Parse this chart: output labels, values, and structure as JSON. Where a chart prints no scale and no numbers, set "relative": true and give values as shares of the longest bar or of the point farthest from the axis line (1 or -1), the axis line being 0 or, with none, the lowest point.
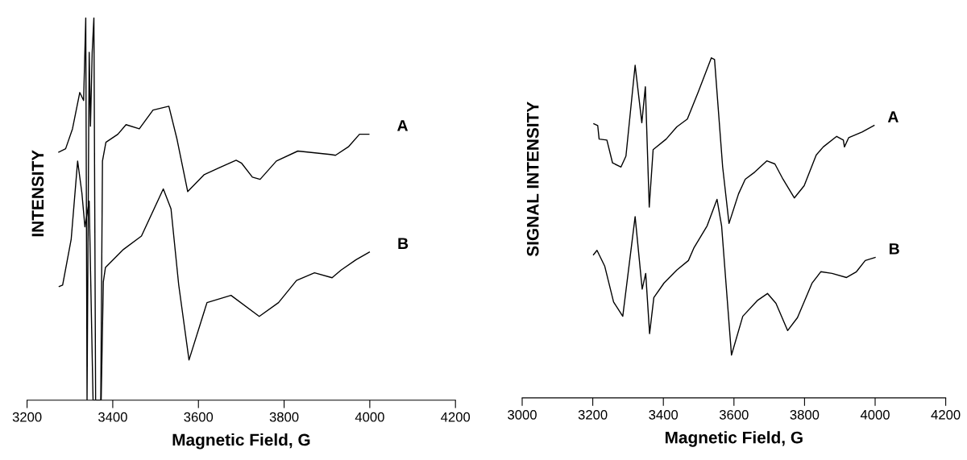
{
  "chart_data": [
    {
      "type": "line",
      "relative": true,
      "xlabel": "Magnetic Field, G",
      "ylabel": "INTENSITY",
      "xlim": [
        3200,
        4200
      ],
      "xticks": [
        3200,
        3400,
        3600,
        3800,
        4000,
        4200
      ],
      "grid": false,
      "legend": false,
      "tick_labels": "x",
      "marker": "none",
      "line_style": "solid",
      "series": [
        {
          "name": "A",
          "color": "#000000",
          "x": [
            3274,
            3290,
            3306,
            3323,
            3332,
            3337,
            3340,
            3345,
            3348,
            3352,
            3356,
            3360,
            3372,
            3376,
            3384,
            3412,
            3431,
            3462,
            3494,
            3531,
            3550,
            3575,
            3613,
            3650,
            3688,
            3701,
            3726,
            3744,
            3782,
            3832,
            3908,
            3920,
            3951,
            3976,
            3998
          ],
          "values": [
            0.648,
            0.657,
            0.709,
            0.804,
            0.783,
            1.0,
            0,
            0.909,
            0.716,
            0.909,
            1.0,
            0,
            0,
            0.625,
            0.674,
            0.695,
            0.72,
            0.709,
            0.758,
            0.768,
            0.682,
            0.545,
            0.589,
            0.608,
            0.627,
            0.619,
            0.583,
            0.577,
            0.625,
            0.651,
            0.642,
            0.64,
            0.663,
            0.695,
            0.695
          ]
        },
        {
          "name": "B",
          "color": "#000000",
          "x": [
            3275,
            3283,
            3303,
            3318,
            3328,
            3335,
            3345,
            3354,
            3373,
            3378,
            3383,
            3425,
            3467,
            3518,
            3536,
            3554,
            3578,
            3620,
            3676,
            3742,
            3787,
            3829,
            3871,
            3912,
            3933,
            3968,
            3999
          ],
          "values": [
            0.297,
            0.301,
            0.421,
            0.625,
            0.541,
            0.453,
            0.52,
            0,
            0,
            0.309,
            0.347,
            0.394,
            0.429,
            0.552,
            0.5,
            0.301,
            0.105,
            0.255,
            0.274,
            0.219,
            0.255,
            0.313,
            0.333,
            0.32,
            0.34,
            0.367,
            0.387
          ]
        }
      ]
    },
    {
      "type": "line",
      "relative": true,
      "xlabel": "Magnetic Field, G",
      "ylabel": "SIGNAL INTENSITY",
      "xlim": [
        3000,
        4200
      ],
      "xticks": [
        3000,
        3200,
        3400,
        3600,
        3800,
        4000,
        4200
      ],
      "grid": false,
      "legend": false,
      "tick_labels": "x",
      "marker": "none",
      "line_style": "solid",
      "series": [
        {
          "name": "A",
          "color": "#000000",
          "x": [
            3203,
            3214,
            3218,
            3240,
            3256,
            3280,
            3294,
            3320,
            3339,
            3349,
            3360,
            3371,
            3408,
            3438,
            3468,
            3499,
            3536,
            3545,
            3568,
            3586,
            3613,
            3632,
            3659,
            3693,
            3716,
            3739,
            3771,
            3799,
            3833,
            3853,
            3891,
            3910,
            3913,
            3925,
            3963,
            3997
          ],
          "values": [
            0.806,
            0.801,
            0.761,
            0.758,
            0.691,
            0.679,
            0.711,
            0.978,
            0.809,
            0.915,
            0.561,
            0.73,
            0.761,
            0.797,
            0.82,
            0.9,
            1.0,
            0.995,
            0.679,
            0.513,
            0.6,
            0.643,
            0.664,
            0.697,
            0.688,
            0.643,
            0.588,
            0.624,
            0.714,
            0.738,
            0.769,
            0.758,
            0.738,
            0.765,
            0.782,
            0.801
          ]
        },
        {
          "name": "B",
          "color": "#000000",
          "x": [
            3202,
            3212,
            3234,
            3259,
            3285,
            3320,
            3340,
            3350,
            3361,
            3373,
            3402,
            3438,
            3471,
            3487,
            3524,
            3552,
            3565,
            3593,
            3625,
            3666,
            3695,
            3719,
            3752,
            3780,
            3821,
            3846,
            3878,
            3919,
            3947,
            3972,
            4000
          ],
          "values": [
            0.421,
            0.434,
            0.387,
            0.282,
            0.24,
            0.533,
            0.32,
            0.366,
            0.189,
            0.295,
            0.338,
            0.376,
            0.404,
            0.442,
            0.506,
            0.584,
            0.506,
            0.126,
            0.24,
            0.286,
            0.307,
            0.278,
            0.198,
            0.236,
            0.337,
            0.371,
            0.366,
            0.354,
            0.371,
            0.404,
            0.413
          ]
        }
      ]
    }
  ]
}
